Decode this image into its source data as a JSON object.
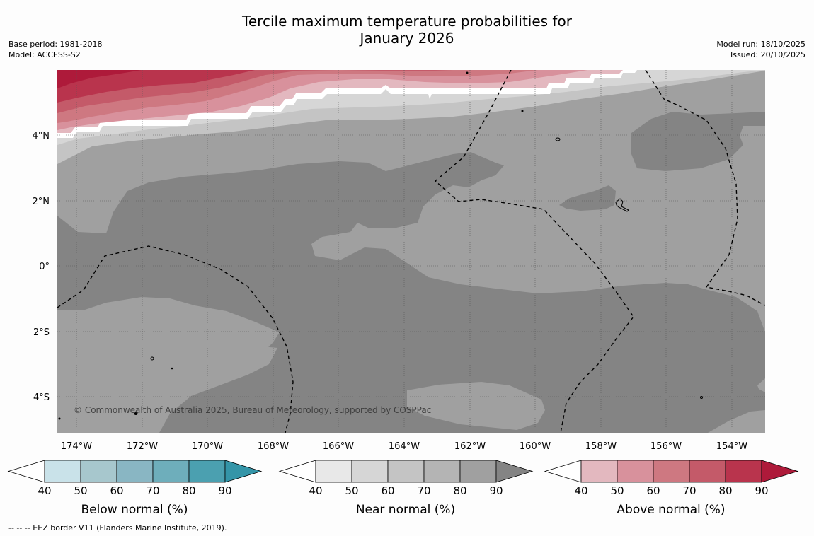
{
  "title_line1": "Tercile maximum temperature probabilities for",
  "title_line2": "January 2026",
  "info_left": {
    "base_period": "Base period: 1981-2018",
    "model": "Model: ACCESS-S2"
  },
  "info_right": {
    "model_run": "Model run: 18/10/2025",
    "issued": "Issued: 20/10/2025"
  },
  "map": {
    "lon_labels": [
      "174°W",
      "172°W",
      "170°W",
      "168°W",
      "166°W",
      "164°W",
      "162°W",
      "160°W",
      "158°W",
      "156°W",
      "154°W"
    ],
    "lat_labels": [
      "4°N",
      "2°N",
      "0°",
      "2°S",
      "4°S"
    ],
    "copyright": "© Commonwealth of Australia 2025, Bureau of Meteorology, supported by COSPPac"
  },
  "colorbars": [
    {
      "label": "Below normal (%)",
      "ticks": [
        "40",
        "50",
        "60",
        "70",
        "80",
        "90"
      ],
      "colors": [
        "#ffffff",
        "#c9e2e9",
        "#a7c7cd",
        "#89b6c3",
        "#6eaebb",
        "#4ba0b0",
        "#3495a8"
      ]
    },
    {
      "label": "Near normal (%)",
      "ticks": [
        "40",
        "50",
        "60",
        "70",
        "80",
        "90"
      ],
      "colors": [
        "#ffffff",
        "#e8e8e8",
        "#d6d6d6",
        "#c4c4c4",
        "#b4b4b4",
        "#a0a0a0",
        "#848484"
      ]
    },
    {
      "label": "Above normal (%)",
      "ticks": [
        "40",
        "50",
        "60",
        "70",
        "80",
        "90"
      ],
      "colors": [
        "#ffffff",
        "#e3b8bf",
        "#d8919c",
        "#ce7881",
        "#c45a69",
        "#b9344d",
        "#ae1a3a"
      ]
    }
  ],
  "footnote": "-- -- -- EEZ border V11 (Flanders Marine Institute, 2019)."
}
